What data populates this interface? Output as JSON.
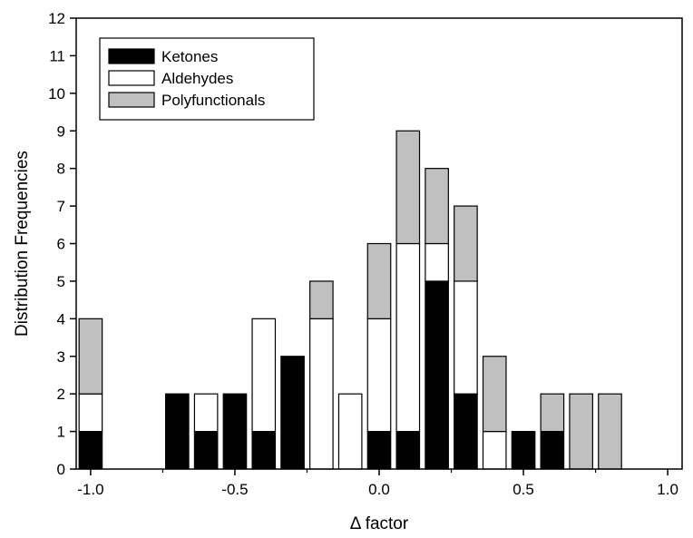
{
  "chart_data": {
    "type": "bar",
    "stacked": true,
    "xlabel": "Δ factor",
    "ylabel": "Distribution Frequencies",
    "xlim": [
      -1.05,
      1.05
    ],
    "ylim": [
      0,
      12
    ],
    "x_ticks": [
      -1.0,
      -0.5,
      0.0,
      0.5,
      1.0
    ],
    "x_tick_labels": [
      "-1.0",
      "-0.5",
      "0.0",
      "0.5",
      "1.0"
    ],
    "y_ticks": [
      0,
      1,
      2,
      3,
      4,
      5,
      6,
      7,
      8,
      9,
      10,
      11,
      12
    ],
    "y_tick_labels": [
      "0",
      "1",
      "2",
      "3",
      "4",
      "5",
      "6",
      "7",
      "8",
      "9",
      "10",
      "11",
      "12"
    ],
    "bin_width": 0.1,
    "x": [
      -1.0,
      -0.7,
      -0.6,
      -0.5,
      -0.4,
      -0.3,
      -0.2,
      -0.1,
      0.0,
      0.1,
      0.2,
      0.3,
      0.4,
      0.5,
      0.6,
      0.7,
      0.8
    ],
    "series": [
      {
        "name": "Ketones",
        "color": "#000000",
        "values": [
          1,
          2,
          1,
          2,
          1,
          3,
          0,
          0,
          1,
          1,
          5,
          2,
          0,
          1,
          1,
          0,
          0
        ]
      },
      {
        "name": "Aldehydes",
        "color": "#ffffff",
        "values": [
          1,
          0,
          1,
          0,
          3,
          0,
          4,
          2,
          3,
          5,
          1,
          3,
          1,
          0,
          0,
          0,
          0
        ]
      },
      {
        "name": "Polyfunctionals",
        "color": "#c0c0c0",
        "values": [
          2,
          0,
          0,
          0,
          0,
          0,
          1,
          0,
          2,
          3,
          2,
          2,
          2,
          0,
          1,
          2,
          2
        ]
      }
    ],
    "legend_position": "top-left",
    "grid": false
  }
}
